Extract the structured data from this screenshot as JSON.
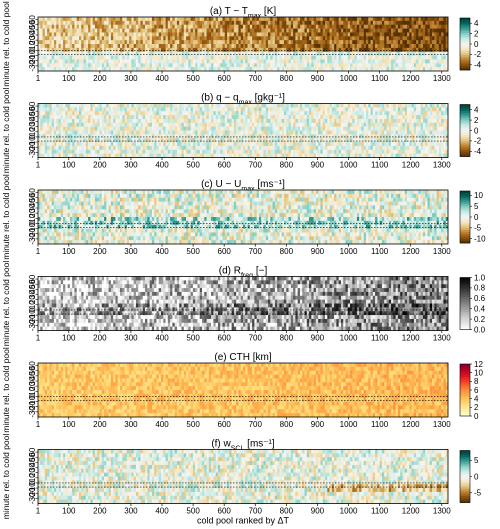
{
  "chart_data": [
    {
      "type": "heatmap",
      "title": "(a) T − T_max [K]",
      "title_main": "(a) T − T",
      "title_sub": "max",
      "title_tail": " [K]",
      "xlabel": "",
      "ylabel": "minute rel. to cold pool",
      "xlim": [
        1,
        1320
      ],
      "x_ticks": [
        1,
        100,
        200,
        300,
        400,
        500,
        600,
        700,
        800,
        900,
        1000,
        1100,
        1200,
        1300
      ],
      "ylim": [
        -40,
        65
      ],
      "y_ticks": [
        -30,
        -20,
        -10,
        0,
        10,
        20,
        30,
        40,
        50,
        60
      ],
      "colorbar": {
        "ticks": [
          4,
          2,
          0,
          -2,
          -4
        ],
        "range": [
          -5,
          5
        ],
        "scheme": "BrBG"
      },
      "reference_lines_minutes": [
        0,
        -8
      ],
      "pattern": "cooling after minute 0, strengthening with rank"
    },
    {
      "type": "heatmap",
      "title": "(b) q − q_max [gkg⁻¹]",
      "title_main": "(b) q − q",
      "title_sub": "max",
      "title_tail": " [gkg⁻¹]",
      "xlabel": "",
      "ylabel": "minute rel. to cold pool",
      "xlim": [
        1,
        1320
      ],
      "x_ticks": [
        1,
        100,
        200,
        300,
        400,
        500,
        600,
        700,
        800,
        900,
        1000,
        1100,
        1200,
        1300
      ],
      "ylim": [
        -40,
        65
      ],
      "y_ticks": [
        -30,
        -20,
        -10,
        0,
        10,
        20,
        30,
        40,
        50,
        60
      ],
      "colorbar": {
        "ticks": [
          4,
          2,
          0,
          -2,
          -4
        ],
        "range": [
          -5,
          5
        ],
        "scheme": "BrBG"
      },
      "reference_lines_minutes": [
        0,
        -8
      ],
      "pattern": "weak mixed anomalies"
    },
    {
      "type": "heatmap",
      "title": "(c) U − U_max [ms⁻¹]",
      "title_main": "(c) U − U",
      "title_sub": "max",
      "title_tail": " [ms⁻¹]",
      "xlabel": "",
      "ylabel": "minute rel. to cold pool",
      "xlim": [
        1,
        1320
      ],
      "x_ticks": [
        1,
        100,
        200,
        300,
        400,
        500,
        600,
        700,
        800,
        900,
        1000,
        1100,
        1200,
        1300
      ],
      "ylim": [
        -40,
        65
      ],
      "y_ticks": [
        -30,
        -20,
        -10,
        0,
        10,
        20,
        30,
        40,
        50,
        60
      ],
      "colorbar": {
        "ticks": [
          10,
          5,
          0,
          -5,
          -10
        ],
        "range": [
          -12,
          12
        ],
        "scheme": "BrBG"
      },
      "reference_lines_minutes": [
        0,
        -8
      ],
      "pattern": "positive anomalies near minute 0"
    },
    {
      "type": "heatmap",
      "title": "(d) R_freq [−]",
      "title_main": "(d) R",
      "title_sub": "freq",
      "title_tail": " [−]",
      "xlabel": "",
      "ylabel": "minute rel. to cold pool",
      "xlim": [
        1,
        1320
      ],
      "x_ticks": [
        1,
        100,
        200,
        300,
        400,
        500,
        600,
        700,
        800,
        900,
        1000,
        1100,
        1200,
        1300
      ],
      "ylim": [
        -40,
        65
      ],
      "y_ticks": [
        -30,
        -20,
        -10,
        0,
        10,
        20,
        30,
        40,
        50,
        60
      ],
      "colorbar": {
        "ticks": [
          1.0,
          0.8,
          0.6,
          0.4,
          0.2,
          0.0
        ],
        "range": [
          0,
          1
        ],
        "scheme": "Greys"
      },
      "reference_lines_minutes": [
        0,
        -8
      ],
      "pattern": "rain frequency increasing with rank"
    },
    {
      "type": "heatmap",
      "title": "(e) CTH [km]",
      "title_main": "(e) CTH [km]",
      "title_sub": "",
      "title_tail": "",
      "xlabel": "",
      "ylabel": "minute rel. to cold pool",
      "xlim": [
        1,
        1320
      ],
      "x_ticks": [
        1,
        100,
        200,
        300,
        400,
        500,
        600,
        700,
        800,
        900,
        1000,
        1100,
        1200,
        1300
      ],
      "ylim": [
        -40,
        65
      ],
      "y_ticks": [
        -30,
        -20,
        -10,
        0,
        10,
        20,
        30,
        40,
        50,
        60
      ],
      "colorbar": {
        "ticks": [
          12,
          10,
          8,
          6,
          4,
          2,
          0
        ],
        "range": [
          0,
          12
        ],
        "scheme": "YlOrRd"
      },
      "reference_lines_minutes": [
        0,
        -8
      ],
      "pattern": "cloud top heights mostly 2–6 km"
    },
    {
      "type": "heatmap",
      "title": "(f) w_SCL [ms⁻¹]",
      "title_main": "(f) w",
      "title_sub": "SCL",
      "title_tail": " [ms⁻¹]",
      "xlabel": "cold pool ranked by ΔT",
      "ylabel": "minute rel. to cold pool",
      "xlim": [
        1,
        1320
      ],
      "x_ticks": [
        1,
        100,
        200,
        300,
        400,
        500,
        600,
        700,
        800,
        900,
        1000,
        1100,
        1200,
        1300
      ],
      "ylim": [
        -40,
        65
      ],
      "y_ticks": [
        -30,
        -20,
        -10,
        0,
        10,
        20,
        30,
        40,
        50,
        60
      ],
      "colorbar": {
        "ticks": [
          5,
          0,
          -5
        ],
        "range": [
          -8,
          8
        ],
        "scheme": "BrBG"
      },
      "reference_lines_minutes": [
        0,
        -8
      ],
      "pattern": "weak mixed anomalies, slight negative band at high rank"
    }
  ]
}
